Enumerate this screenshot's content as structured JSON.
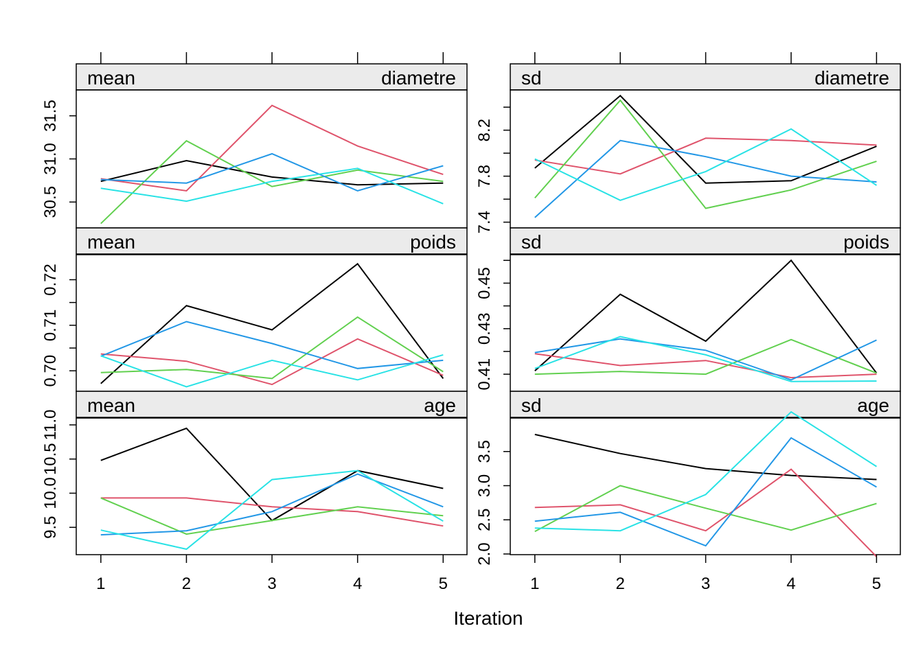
{
  "xlabel": "Iteration",
  "x_ticks": [
    "1",
    "2",
    "3",
    "4",
    "5"
  ],
  "series_colors": [
    "#000000",
    "#DF536B",
    "#61D04F",
    "#2297E6",
    "#28E2E5"
  ],
  "strip_background": "#EBEBEB",
  "chart_data": [
    {
      "type": "line",
      "stat": "mean",
      "variable": "diametre",
      "panel_col": 0,
      "panel_row": 0,
      "x": [
        1,
        2,
        3,
        4,
        5
      ],
      "ylim": [
        30.2,
        31.8
      ],
      "y_ticks": [
        30.5,
        31.0,
        31.5
      ],
      "y_tick_labels": [
        "30.5",
        "31.0",
        "31.5"
      ],
      "series": [
        {
          "values": [
            30.74,
            30.98,
            30.79,
            30.7,
            30.72
          ]
        },
        {
          "values": [
            30.77,
            30.63,
            31.62,
            31.15,
            30.82
          ]
        },
        {
          "values": [
            30.25,
            31.21,
            30.68,
            30.87,
            30.74
          ]
        },
        {
          "values": [
            30.76,
            30.72,
            31.06,
            30.63,
            30.92
          ]
        },
        {
          "values": [
            30.66,
            30.51,
            30.74,
            30.89,
            30.48
          ]
        }
      ]
    },
    {
      "type": "line",
      "stat": "sd",
      "variable": "diametre",
      "panel_col": 1,
      "panel_row": 0,
      "x": [
        1,
        2,
        3,
        4,
        5
      ],
      "ylim": [
        7.35,
        8.55
      ],
      "y_ticks": [
        7.4,
        7.6,
        7.8,
        8.0,
        8.2,
        8.4
      ],
      "y_tick_labels": [
        "7.4",
        "",
        "7.8",
        "",
        "8.2",
        ""
      ],
      "series": [
        {
          "values": [
            7.87,
            8.5,
            7.74,
            7.76,
            8.06
          ]
        },
        {
          "values": [
            7.94,
            7.82,
            8.13,
            8.11,
            8.07
          ]
        },
        {
          "values": [
            7.61,
            8.46,
            7.52,
            7.68,
            7.93
          ]
        },
        {
          "values": [
            7.44,
            8.11,
            7.97,
            7.8,
            7.75
          ]
        },
        {
          "values": [
            7.95,
            7.59,
            7.84,
            8.21,
            7.72
          ]
        }
      ]
    },
    {
      "type": "line",
      "stat": "mean",
      "variable": "poids",
      "panel_col": 0,
      "panel_row": 1,
      "x": [
        1,
        2,
        3,
        4,
        5
      ],
      "ylim": [
        0.6955,
        0.7255
      ],
      "y_ticks": [
        0.7,
        0.705,
        0.71,
        0.715,
        0.72
      ],
      "y_tick_labels": [
        "0.70",
        "",
        "0.71",
        "",
        "0.72"
      ],
      "series": [
        {
          "values": [
            0.6972,
            0.7143,
            0.709,
            0.7235,
            0.6983
          ]
        },
        {
          "values": [
            0.7037,
            0.7021,
            0.697,
            0.707,
            0.699
          ]
        },
        {
          "values": [
            0.6996,
            0.7003,
            0.6983,
            0.7118,
            0.6998
          ]
        },
        {
          "values": [
            0.7032,
            0.7108,
            0.706,
            0.7005,
            0.7023
          ]
        },
        {
          "values": [
            0.7033,
            0.6965,
            0.7023,
            0.698,
            0.7035
          ]
        }
      ]
    },
    {
      "type": "line",
      "stat": "sd",
      "variable": "poids",
      "panel_col": 1,
      "panel_row": 1,
      "x": [
        1,
        2,
        3,
        4,
        5
      ],
      "ylim": [
        0.4025,
        0.4625
      ],
      "y_ticks": [
        0.41,
        0.42,
        0.43,
        0.44,
        0.45,
        0.46
      ],
      "y_tick_labels": [
        "0.41",
        "",
        "0.43",
        "",
        "0.45",
        ""
      ],
      "series": [
        {
          "values": [
            0.4115,
            0.4451,
            0.4245,
            0.46,
            0.4105
          ]
        },
        {
          "values": [
            0.419,
            0.4138,
            0.416,
            0.4085,
            0.41
          ]
        },
        {
          "values": [
            0.41,
            0.4112,
            0.41,
            0.4252,
            0.4105
          ]
        },
        {
          "values": [
            0.4195,
            0.4255,
            0.4205,
            0.4075,
            0.425
          ]
        },
        {
          "values": [
            0.4125,
            0.4265,
            0.4185,
            0.4068,
            0.407
          ]
        }
      ]
    },
    {
      "type": "line",
      "stat": "mean",
      "variable": "age",
      "panel_col": 0,
      "panel_row": 2,
      "x": [
        1,
        2,
        3,
        4,
        5
      ],
      "ylim": [
        9.1,
        11.1
      ],
      "y_ticks": [
        9.5,
        10.0,
        10.5,
        11.0
      ],
      "y_tick_labels": [
        "9.5",
        "10.0",
        "10.5",
        "11.0"
      ],
      "series": [
        {
          "values": [
            10.48,
            10.95,
            9.6,
            10.33,
            10.07
          ]
        },
        {
          "values": [
            9.93,
            9.93,
            9.8,
            9.73,
            9.52
          ]
        },
        {
          "values": [
            9.93,
            9.4,
            9.6,
            9.8,
            9.67
          ]
        },
        {
          "values": [
            9.39,
            9.45,
            9.73,
            10.28,
            9.8
          ]
        },
        {
          "values": [
            9.46,
            9.18,
            10.2,
            10.33,
            9.59
          ]
        }
      ]
    },
    {
      "type": "line",
      "stat": "sd",
      "variable": "age",
      "panel_col": 1,
      "panel_row": 2,
      "x": [
        1,
        2,
        3,
        4,
        5
      ],
      "ylim": [
        1.99,
        3.99
      ],
      "y_ticks": [
        2.0,
        2.5,
        3.0,
        3.5
      ],
      "y_tick_labels": [
        "2.0",
        "2.5",
        "3.0",
        "3.5"
      ],
      "series": [
        {
          "values": [
            3.75,
            3.47,
            3.25,
            3.15,
            3.09
          ]
        },
        {
          "values": [
            2.68,
            2.72,
            2.34,
            3.24,
            1.96
          ]
        },
        {
          "values": [
            2.33,
            3.0,
            2.67,
            2.35,
            2.74
          ]
        },
        {
          "values": [
            2.48,
            2.61,
            2.12,
            3.7,
            2.98
          ]
        },
        {
          "values": [
            2.38,
            2.34,
            2.87,
            4.08,
            3.28
          ]
        }
      ]
    }
  ]
}
